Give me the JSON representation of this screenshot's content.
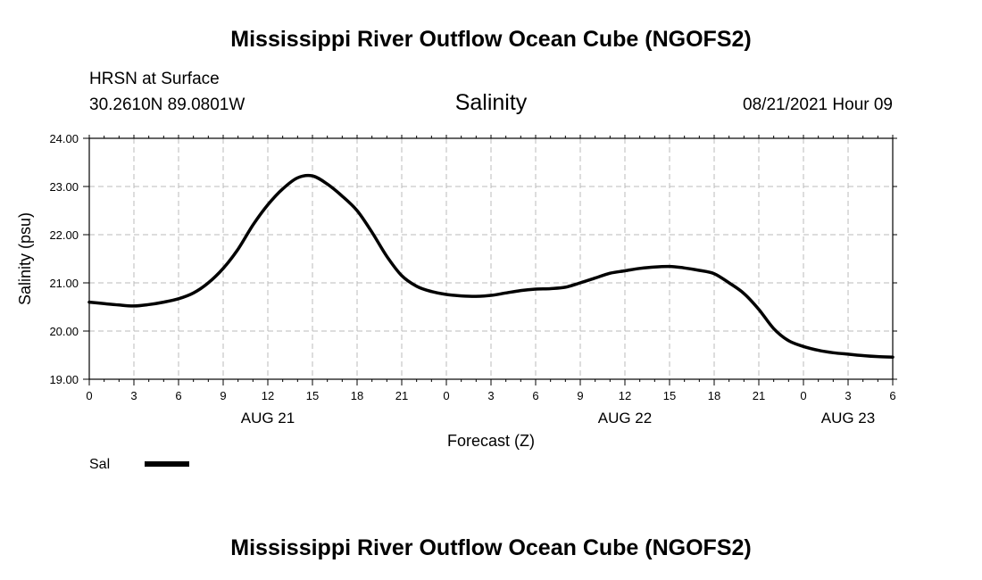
{
  "header": {
    "title": "Mississippi River Outflow Ocean Cube (NGOFS2)",
    "station": "HRSN at Surface",
    "coords": "30.2610N  89.0801W",
    "subtitle": "Salinity",
    "datetime": "08/21/2021 Hour 09"
  },
  "footer": {
    "title": "Mississippi River Outflow Ocean Cube (NGOFS2)"
  },
  "colors": {
    "line": "#000000",
    "grid": "#bbbbbb"
  },
  "chart_data": {
    "type": "line",
    "title": "Salinity",
    "xlabel": "Forecast (Z)",
    "ylabel": "Salinity (psu)",
    "xlim": [
      0,
      54
    ],
    "ylim": [
      19.0,
      24.0
    ],
    "grid": true,
    "x_ticks": [
      0,
      3,
      6,
      9,
      12,
      15,
      18,
      21,
      24,
      27,
      30,
      33,
      36,
      39,
      42,
      45,
      48,
      51,
      54
    ],
    "x_tick_labels": [
      "0",
      "3",
      "6",
      "9",
      "12",
      "15",
      "18",
      "21",
      "0",
      "3",
      "6",
      "9",
      "12",
      "15",
      "18",
      "21",
      "0",
      "3",
      "6"
    ],
    "y_ticks": [
      19.0,
      20.0,
      21.0,
      22.0,
      23.0,
      24.0
    ],
    "y_tick_labels": [
      "19.00",
      "20.00",
      "21.00",
      "22.00",
      "23.00",
      "24.00"
    ],
    "date_labels": [
      {
        "x": 12,
        "label": "AUG 21"
      },
      {
        "x": 36,
        "label": "AUG 22"
      },
      {
        "x": 51,
        "label": "AUG 23"
      }
    ],
    "legend": {
      "position": "bottom-left",
      "entries": [
        {
          "name": "Sal"
        }
      ]
    },
    "series": [
      {
        "name": "Sal",
        "x": [
          0,
          1,
          2,
          3,
          4,
          5,
          6,
          7,
          8,
          9,
          10,
          11,
          12,
          13,
          14,
          15,
          16,
          17,
          18,
          19,
          20,
          21,
          22,
          23,
          24,
          25,
          26,
          27,
          28,
          29,
          30,
          31,
          32,
          33,
          34,
          35,
          36,
          37,
          38,
          39,
          40,
          41,
          42,
          43,
          44,
          45,
          46,
          47,
          48,
          49,
          50,
          51,
          52,
          53,
          54
        ],
        "values": [
          20.6,
          20.57,
          20.54,
          20.52,
          20.55,
          20.6,
          20.67,
          20.79,
          21.0,
          21.3,
          21.7,
          22.2,
          22.62,
          22.95,
          23.18,
          23.22,
          23.05,
          22.8,
          22.5,
          22.05,
          21.55,
          21.15,
          20.93,
          20.82,
          20.76,
          20.73,
          20.72,
          20.74,
          20.79,
          20.84,
          20.87,
          20.88,
          20.91,
          21.0,
          21.1,
          21.2,
          21.25,
          21.3,
          21.33,
          21.34,
          21.31,
          21.26,
          21.19,
          21.0,
          20.78,
          20.45,
          20.05,
          19.8,
          19.68,
          19.6,
          19.55,
          19.52,
          19.49,
          19.47,
          19.46
        ]
      }
    ]
  }
}
